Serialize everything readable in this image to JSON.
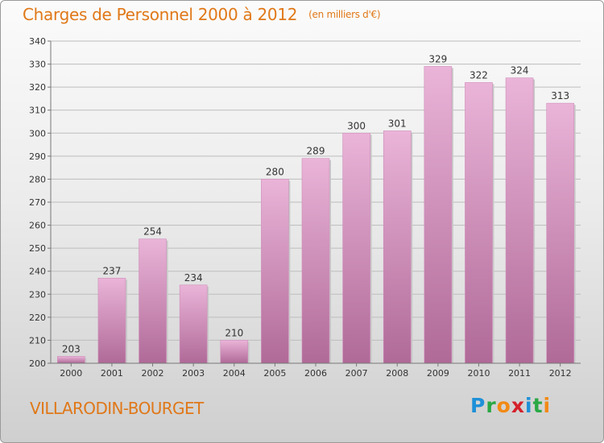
{
  "title": "Charges de Personnel 2000 à 2012",
  "subtitle": "(en milliers d'€)",
  "location": "VILLARODIN-BOURGET",
  "logo": {
    "letters": [
      {
        "char": "P",
        "color": "#1e90d8"
      },
      {
        "char": "r",
        "color": "#2aa845"
      },
      {
        "char": "o",
        "color": "#f28a14"
      },
      {
        "char": "x",
        "color": "#d4202a"
      },
      {
        "char": "i",
        "color": "#1e90d8"
      },
      {
        "char": "t",
        "color": "#2aa845"
      },
      {
        "char": "i",
        "color": "#f28a14"
      }
    ]
  },
  "colors": {
    "title": "#e07818",
    "bar_light": "#eab4d8",
    "bar_dark": "#b06a98",
    "grid": "#bdbdbd"
  },
  "chart_data": {
    "type": "bar",
    "categories": [
      "2000",
      "2001",
      "2002",
      "2003",
      "2004",
      "2005",
      "2006",
      "2007",
      "2008",
      "2009",
      "2010",
      "2011",
      "2012"
    ],
    "values": [
      203,
      237,
      254,
      234,
      210,
      280,
      289,
      300,
      301,
      329,
      322,
      324,
      313
    ],
    "ylim": [
      200,
      340
    ],
    "yticks": [
      200,
      210,
      220,
      230,
      240,
      250,
      260,
      270,
      280,
      290,
      300,
      310,
      320,
      330,
      340
    ],
    "grid": true,
    "xlabel": "",
    "ylabel": ""
  }
}
